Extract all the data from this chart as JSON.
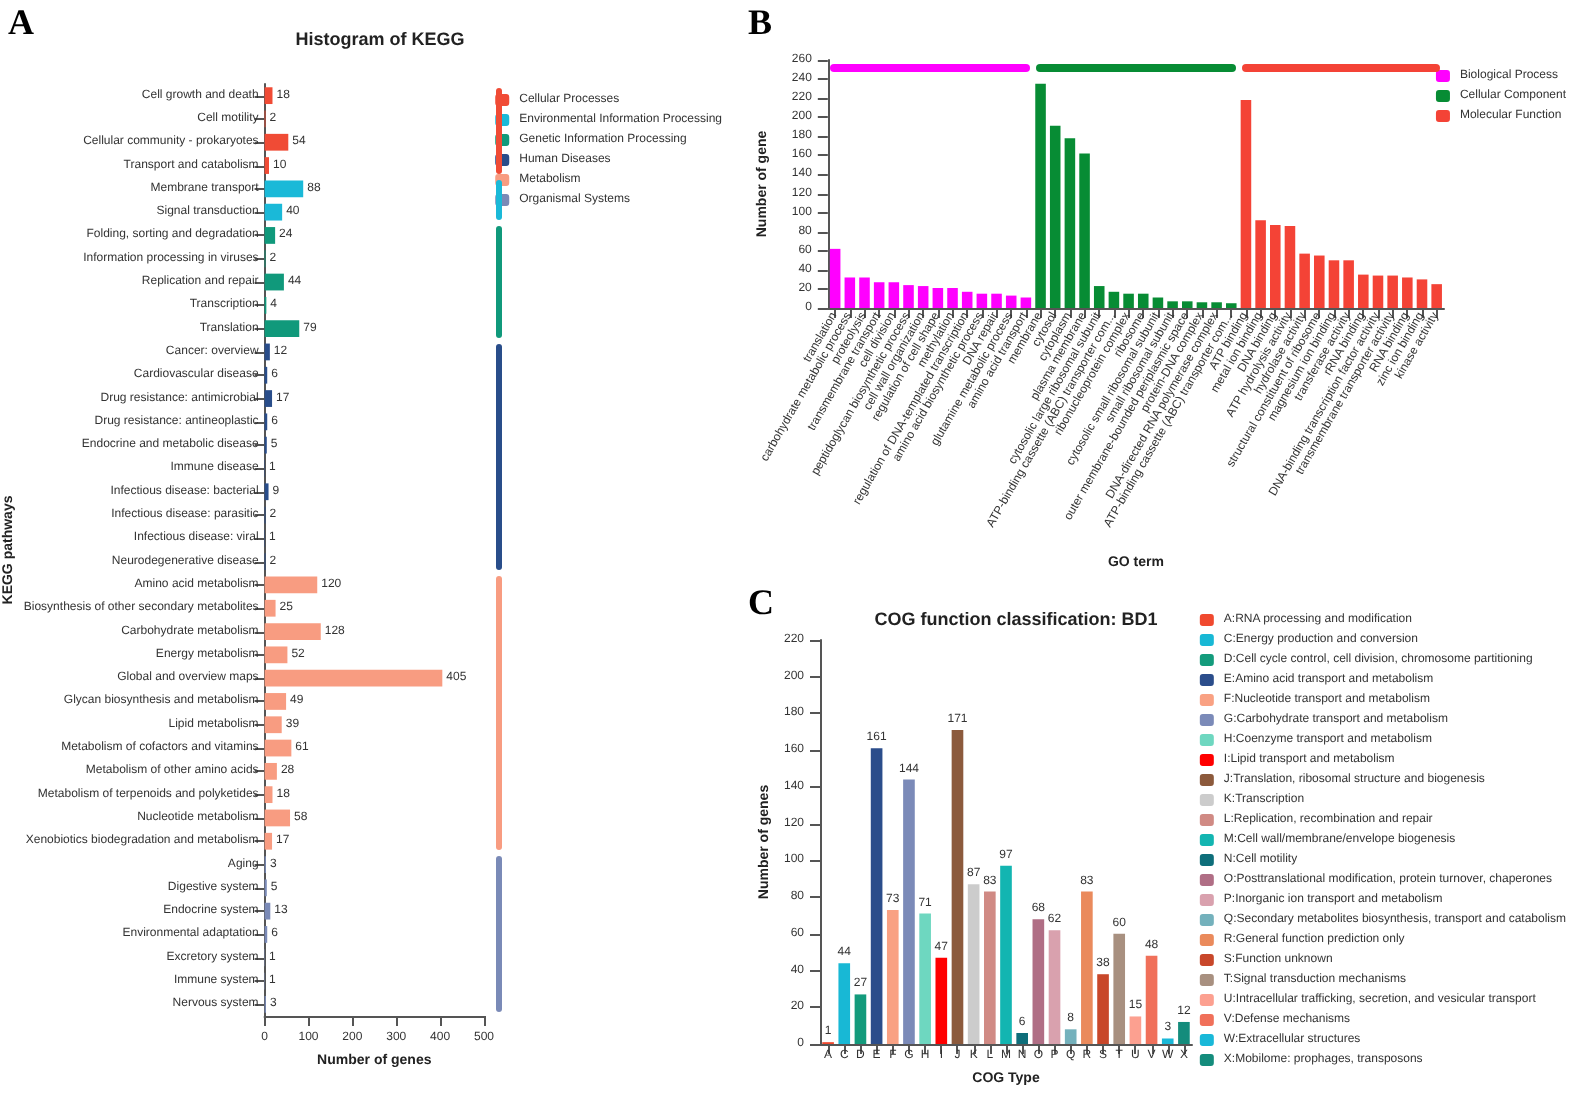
{
  "chart_data": [
    {
      "type": "bar",
      "orientation": "horizontal",
      "title": "Histogram of KEGG",
      "xlabel": "Number of genes",
      "ylabel": "KEGG pathways",
      "annotations": [
        "A"
      ],
      "categories": [
        "Cell growth and death",
        "Cell motility",
        "Cellular community - prokaryotes",
        "Transport and catabolism",
        "Membrane transport",
        "Signal transduction",
        "Folding, sorting and degradation",
        "Information processing in viruses",
        "Replication and repair",
        "Transcription",
        "Translation",
        "Cancer: overview",
        "Cardiovascular disease",
        "Drug resistance: antimicrobial",
        "Drug resistance: antineoplastic",
        "Endocrine and metabolic disease",
        "Immune disease",
        "Infectious disease: bacterial",
        "Infectious disease: parasitic",
        "Infectious disease: viral",
        "Neurodegenerative disease",
        "Amino acid metabolism",
        "Biosynthesis of other secondary metabolites",
        "Carbohydrate metabolism",
        "Energy metabolism",
        "Global and overview maps",
        "Glycan biosynthesis and metabolism",
        "Lipid metabolism",
        "Metabolism of cofactors and vitamins",
        "Metabolism of other amino acids",
        "Metabolism of terpenoids and polyketides",
        "Nucleotide metabolism",
        "Xenobiotics biodegradation and metabolism",
        "Aging",
        "Digestive system",
        "Endocrine system",
        "Environmental adaptation",
        "Excretory system",
        "Immune system",
        "Nervous system"
      ],
      "series": [
        {
          "name": "Cellular Processes",
          "color": "#f04b35",
          "values": [
            18,
            2,
            54,
            10,
            null,
            null,
            null,
            null,
            null,
            null,
            null,
            null,
            null,
            null,
            null,
            null,
            null,
            null,
            null,
            null,
            null,
            null,
            null,
            null,
            null,
            null,
            null,
            null,
            null,
            null,
            null,
            null,
            null,
            null,
            null,
            null,
            null,
            null,
            null,
            null
          ]
        },
        {
          "name": "Environmental Information Processing",
          "color": "#1ab9d8",
          "values": [
            null,
            null,
            null,
            null,
            88,
            40,
            null,
            null,
            null,
            null,
            null,
            null,
            null,
            null,
            null,
            null,
            null,
            null,
            null,
            null,
            null,
            null,
            null,
            null,
            null,
            null,
            null,
            null,
            null,
            null,
            null,
            null,
            null,
            null,
            null,
            null,
            null,
            null,
            null,
            null
          ]
        },
        {
          "name": "Genetic Information Processing",
          "color": "#10997b",
          "values": [
            null,
            null,
            null,
            null,
            null,
            null,
            24,
            2,
            44,
            4,
            79,
            null,
            null,
            null,
            null,
            null,
            null,
            null,
            null,
            null,
            null,
            null,
            null,
            null,
            null,
            null,
            null,
            null,
            null,
            null,
            null,
            null,
            null,
            null,
            null,
            null,
            null,
            null,
            null,
            null
          ]
        },
        {
          "name": "Human Diseases",
          "color": "#294d8a",
          "values": [
            null,
            null,
            null,
            null,
            null,
            null,
            null,
            null,
            null,
            null,
            null,
            12,
            6,
            17,
            6,
            5,
            1,
            9,
            2,
            1,
            2,
            null,
            null,
            null,
            null,
            null,
            null,
            null,
            null,
            null,
            null,
            null,
            null,
            null,
            null,
            null,
            null,
            null,
            null,
            null
          ]
        },
        {
          "name": "Metabolism",
          "color": "#f89c81",
          "values": [
            null,
            null,
            null,
            null,
            null,
            null,
            null,
            null,
            null,
            null,
            null,
            null,
            null,
            null,
            null,
            null,
            null,
            null,
            null,
            null,
            null,
            120,
            25,
            128,
            52,
            405,
            49,
            39,
            61,
            28,
            18,
            58,
            17,
            null,
            null,
            null,
            null,
            null,
            null,
            null
          ]
        },
        {
          "name": "Organismal Systems",
          "color": "#7a8ab7",
          "values": [
            null,
            null,
            null,
            null,
            null,
            null,
            null,
            null,
            null,
            null,
            null,
            null,
            null,
            null,
            null,
            null,
            null,
            null,
            null,
            null,
            null,
            null,
            null,
            null,
            null,
            null,
            null,
            null,
            null,
            null,
            null,
            null,
            null,
            3,
            5,
            13,
            6,
            1,
            1,
            3
          ]
        }
      ],
      "xlim": [
        0,
        500
      ],
      "xticks": [
        0,
        100,
        200,
        300,
        400,
        500
      ],
      "data_labels": true,
      "legend": "top right"
    },
    {
      "type": "bar",
      "xlabel": "GO term",
      "ylabel": "Number of gene",
      "annotations": [
        "B"
      ],
      "categories": [
        "translation",
        "carbohydrate metabolic process",
        "proteolysis",
        "transmembrane transport",
        "cell division",
        "peptidoglycan biosynthetic process",
        "cell wall organization",
        "regulation of cell shape",
        "methylation",
        "regulation of DNA-templated transcription",
        "amino acid biosynthetic process",
        "DNA repair",
        "glutamine metabolic process",
        "amino acid transport",
        "membrane",
        "cytosol",
        "cytoplasm",
        "plasma membrane",
        "cytosolic large ribosomal subunit",
        "ATP-binding cassette (ABC) transporter com...",
        "ribonucleoprotein complex",
        "ribosome",
        "cytosolic small ribosomal subunit",
        "small ribosomal subunit",
        "outer membrane-bounded periplasmic space",
        "protein-DNA complex",
        "DNA-directed RNA polymerase complex",
        "ATP-binding cassette (ABC) transporter com...",
        "ATP binding",
        "metal ion binding",
        "DNA binding",
        "ATP hydrolysis activity",
        "hydrolase activity",
        "structural constituent of ribosome",
        "magnesium ion binding",
        "transferase activity",
        "rRNA binding",
        "DNA-binding transcription factor activity",
        "transmembrane transporter activity",
        "RNA binding",
        "zinc ion binding",
        "kinase activity"
      ],
      "series": [
        {
          "name": "Biological Process",
          "color": "#ff00ff",
          "values": [
            62,
            32,
            32,
            27,
            27,
            24,
            23,
            21,
            21,
            17,
            15,
            15,
            13,
            11,
            null,
            null,
            null,
            null,
            null,
            null,
            null,
            null,
            null,
            null,
            null,
            null,
            null,
            null,
            null,
            null,
            null,
            null,
            null,
            null,
            null,
            null,
            null,
            null,
            null,
            null,
            null,
            null
          ]
        },
        {
          "name": "Cellular Component",
          "color": "#078c34",
          "values": [
            null,
            null,
            null,
            null,
            null,
            null,
            null,
            null,
            null,
            null,
            null,
            null,
            null,
            null,
            235,
            191,
            178,
            162,
            23,
            17,
            15,
            15,
            11,
            7,
            7,
            6,
            6,
            5,
            null,
            null,
            null,
            null,
            null,
            null,
            null,
            null,
            null,
            null,
            null,
            null,
            null,
            null
          ]
        },
        {
          "name": "Molecular Function",
          "color": "#f44336",
          "values": [
            null,
            null,
            null,
            null,
            null,
            null,
            null,
            null,
            null,
            null,
            null,
            null,
            null,
            null,
            null,
            null,
            null,
            null,
            null,
            null,
            null,
            null,
            null,
            null,
            null,
            null,
            null,
            null,
            218,
            92,
            87,
            86,
            57,
            55,
            50,
            50,
            35,
            34,
            34,
            32,
            30,
            25
          ]
        }
      ],
      "ylim": [
        0,
        260
      ],
      "yticks": [
        0,
        20,
        40,
        60,
        80,
        100,
        120,
        140,
        160,
        180,
        200,
        220,
        240,
        260
      ],
      "legend": "top right"
    },
    {
      "type": "bar",
      "title": "COG function classification: BD1",
      "xlabel": "COG Type",
      "ylabel": "Number of genes",
      "annotations": [
        "C"
      ],
      "categories": [
        "A",
        "C",
        "D",
        "E",
        "F",
        "G",
        "H",
        "I",
        "J",
        "K",
        "L",
        "M",
        "N",
        "O",
        "P",
        "Q",
        "R",
        "S",
        "T",
        "U",
        "V",
        "W",
        "X"
      ],
      "series": [
        {
          "name": "A:RNA processing and modification",
          "color": "#f0492f",
          "values": [
            1,
            null,
            null,
            null,
            null,
            null,
            null,
            null,
            null,
            null,
            null,
            null,
            null,
            null,
            null,
            null,
            null,
            null,
            null,
            null,
            null,
            null,
            null
          ]
        },
        {
          "name": "C:Energy production and conversion",
          "color": "#18b8d5",
          "values": [
            null,
            44,
            null,
            null,
            null,
            null,
            null,
            null,
            null,
            null,
            null,
            null,
            null,
            null,
            null,
            null,
            null,
            null,
            null,
            null,
            null,
            null,
            null
          ]
        },
        {
          "name": "D:Cell cycle control, cell division, chromosome partitioning",
          "color": "#139b7c",
          "values": [
            null,
            null,
            27,
            null,
            null,
            null,
            null,
            null,
            null,
            null,
            null,
            null,
            null,
            null,
            null,
            null,
            null,
            null,
            null,
            null,
            null,
            null,
            null
          ]
        },
        {
          "name": "E:Amino acid transport and metabolism",
          "color": "#2b4d8b",
          "values": [
            null,
            null,
            null,
            161,
            null,
            null,
            null,
            null,
            null,
            null,
            null,
            null,
            null,
            null,
            null,
            null,
            null,
            null,
            null,
            null,
            null,
            null,
            null
          ]
        },
        {
          "name": "F:Nucleotide transport and metabolism",
          "color": "#f9a183",
          "values": [
            null,
            null,
            null,
            null,
            73,
            null,
            null,
            null,
            null,
            null,
            null,
            null,
            null,
            null,
            null,
            null,
            null,
            null,
            null,
            null,
            null,
            null,
            null
          ]
        },
        {
          "name": "G:Carbohydrate transport and metabolism",
          "color": "#7b8ab8",
          "values": [
            null,
            null,
            null,
            null,
            null,
            144,
            null,
            null,
            null,
            null,
            null,
            null,
            null,
            null,
            null,
            null,
            null,
            null,
            null,
            null,
            null,
            null,
            null
          ]
        },
        {
          "name": "H:Coenzyme transport and metabolism",
          "color": "#6ed7c0",
          "values": [
            null,
            null,
            null,
            null,
            null,
            null,
            71,
            null,
            null,
            null,
            null,
            null,
            null,
            null,
            null,
            null,
            null,
            null,
            null,
            null,
            null,
            null,
            null
          ]
        },
        {
          "name": "I:Lipid transport and metabolism",
          "color": "#ff0000",
          "values": [
            null,
            null,
            null,
            null,
            null,
            null,
            null,
            47,
            null,
            null,
            null,
            null,
            null,
            null,
            null,
            null,
            null,
            null,
            null,
            null,
            null,
            null,
            null
          ]
        },
        {
          "name": "J:Translation, ribosomal structure and biogenesis",
          "color": "#8c5a3c",
          "values": [
            null,
            null,
            null,
            null,
            null,
            null,
            null,
            null,
            171,
            null,
            null,
            null,
            null,
            null,
            null,
            null,
            null,
            null,
            null,
            null,
            null,
            null,
            null
          ]
        },
        {
          "name": "K:Transcription",
          "color": "#cccccc",
          "values": [
            null,
            null,
            null,
            null,
            null,
            null,
            null,
            null,
            null,
            87,
            null,
            null,
            null,
            null,
            null,
            null,
            null,
            null,
            null,
            null,
            null,
            null,
            null
          ]
        },
        {
          "name": "L:Replication, recombination and repair",
          "color": "#d08a84",
          "values": [
            null,
            null,
            null,
            null,
            null,
            null,
            null,
            null,
            null,
            null,
            83,
            null,
            null,
            null,
            null,
            null,
            null,
            null,
            null,
            null,
            null,
            null,
            null
          ]
        },
        {
          "name": "M:Cell wall/membrane/envelope biogenesis",
          "color": "#13b5b1",
          "values": [
            null,
            null,
            null,
            null,
            null,
            null,
            null,
            null,
            null,
            null,
            null,
            97,
            null,
            null,
            null,
            null,
            null,
            null,
            null,
            null,
            null,
            null,
            null
          ]
        },
        {
          "name": "N:Cell motility",
          "color": "#0e6e7a",
          "values": [
            null,
            null,
            null,
            null,
            null,
            null,
            null,
            null,
            null,
            null,
            null,
            null,
            6,
            null,
            null,
            null,
            null,
            null,
            null,
            null,
            null,
            null,
            null
          ]
        },
        {
          "name": "O:Posttranslational modification, protein turnover, chaperones",
          "color": "#b06e85",
          "values": [
            null,
            null,
            null,
            null,
            null,
            null,
            null,
            null,
            null,
            null,
            null,
            null,
            null,
            68,
            null,
            null,
            null,
            null,
            null,
            null,
            null,
            null,
            null
          ]
        },
        {
          "name": "P:Inorganic ion transport and metabolism",
          "color": "#d9a1ae",
          "values": [
            null,
            null,
            null,
            null,
            null,
            null,
            null,
            null,
            null,
            null,
            null,
            null,
            null,
            null,
            62,
            null,
            null,
            null,
            null,
            null,
            null,
            null,
            null
          ]
        },
        {
          "name": "Q:Secondary metabolites biosynthesis, transport and catabolism",
          "color": "#74b1bc",
          "values": [
            null,
            null,
            null,
            null,
            null,
            null,
            null,
            null,
            null,
            null,
            null,
            null,
            null,
            null,
            null,
            8,
            null,
            null,
            null,
            null,
            null,
            null,
            null
          ]
        },
        {
          "name": "R:General function prediction only",
          "color": "#ea8a5c",
          "values": [
            null,
            null,
            null,
            null,
            null,
            null,
            null,
            null,
            null,
            null,
            null,
            null,
            null,
            null,
            null,
            null,
            83,
            null,
            null,
            null,
            null,
            null,
            null
          ]
        },
        {
          "name": "S:Function unknown",
          "color": "#c8472a",
          "values": [
            null,
            null,
            null,
            null,
            null,
            null,
            null,
            null,
            null,
            null,
            null,
            null,
            null,
            null,
            null,
            null,
            null,
            38,
            null,
            null,
            null,
            null,
            null
          ]
        },
        {
          "name": "T:Signal transduction mechanisms",
          "color": "#a89080",
          "values": [
            null,
            null,
            null,
            null,
            null,
            null,
            null,
            null,
            null,
            null,
            null,
            null,
            null,
            null,
            null,
            null,
            null,
            null,
            60,
            null,
            null,
            null,
            null
          ]
        },
        {
          "name": "U:Intracellular trafficking, secretion, and vesicular transport",
          "color": "#fca090",
          "values": [
            null,
            null,
            null,
            null,
            null,
            null,
            null,
            null,
            null,
            null,
            null,
            null,
            null,
            null,
            null,
            null,
            null,
            null,
            null,
            15,
            null,
            null,
            null
          ]
        },
        {
          "name": "V:Defense mechanisms",
          "color": "#f0705a",
          "values": [
            null,
            null,
            null,
            null,
            null,
            null,
            null,
            null,
            null,
            null,
            null,
            null,
            null,
            null,
            null,
            null,
            null,
            null,
            null,
            null,
            48,
            null,
            null
          ]
        },
        {
          "name": "W:Extracellular structures",
          "color": "#19b8d8",
          "values": [
            null,
            null,
            null,
            null,
            null,
            null,
            null,
            null,
            null,
            null,
            null,
            null,
            null,
            null,
            null,
            null,
            null,
            null,
            null,
            null,
            null,
            3,
            null
          ]
        },
        {
          "name": "X:Mobilome: prophages, transposons",
          "color": "#148c7c",
          "values": [
            null,
            null,
            null,
            null,
            null,
            null,
            null,
            null,
            null,
            null,
            null,
            null,
            null,
            null,
            null,
            null,
            null,
            null,
            null,
            null,
            null,
            null,
            12
          ]
        }
      ],
      "ylim": [
        0,
        220
      ],
      "yticks": [
        0,
        20,
        40,
        60,
        80,
        100,
        120,
        140,
        160,
        180,
        200,
        220
      ],
      "data_labels": true,
      "legend": "right"
    }
  ]
}
